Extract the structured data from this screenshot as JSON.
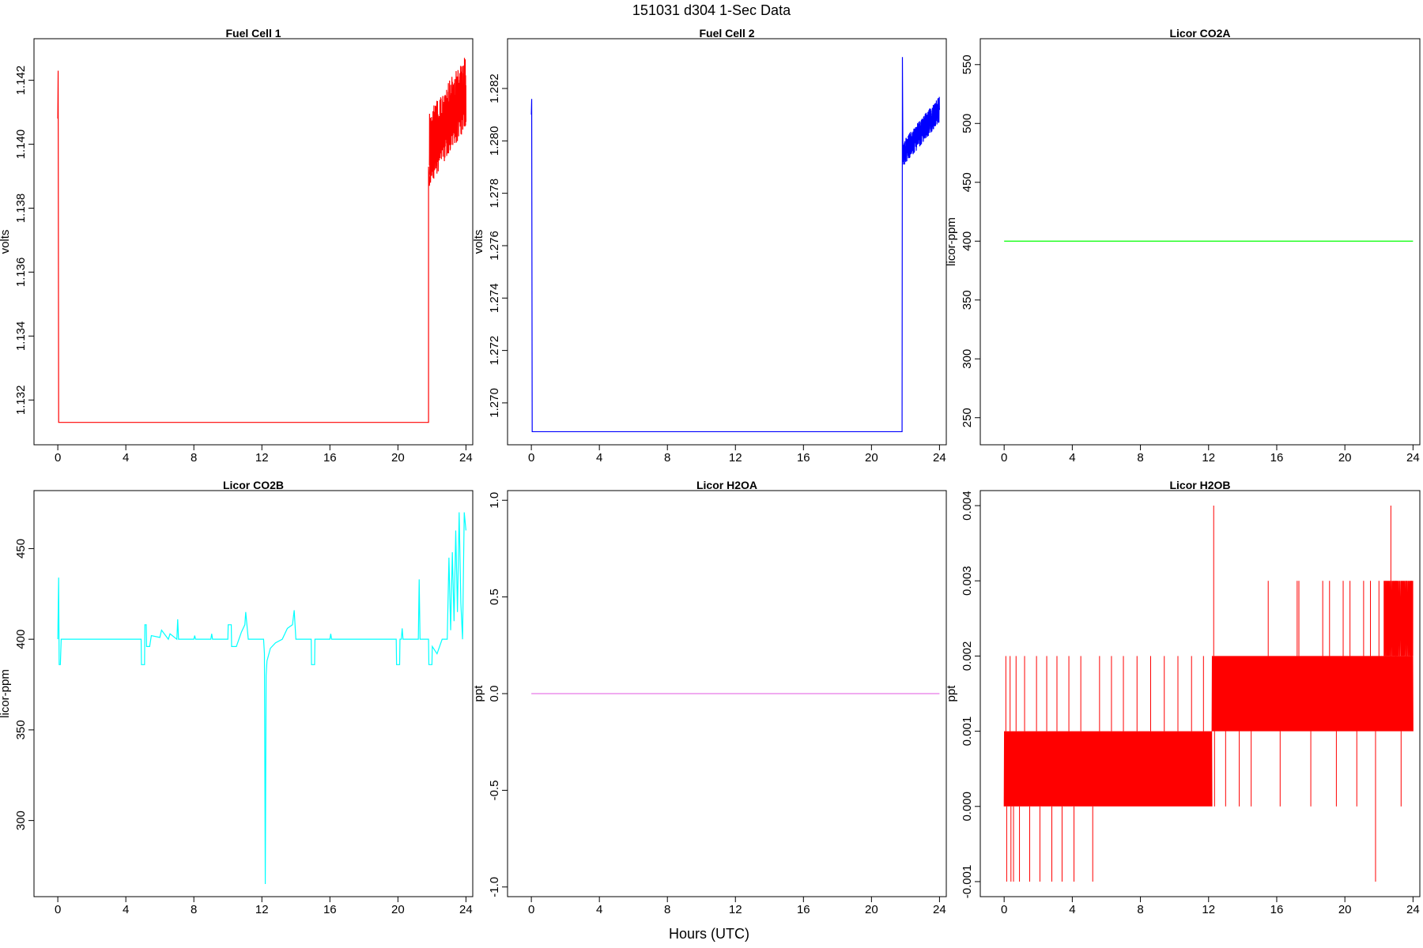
{
  "figure": {
    "title": "151031    d304    1-Sec Data",
    "xlabel": "Hours (UTC)"
  },
  "chart_data": [
    {
      "type": "line",
      "title": "Fuel Cell 1",
      "xlabel": "",
      "ylabel": "volts",
      "color": "#ff0000",
      "xlim": [
        -1.4,
        24.4
      ],
      "ylim": [
        1.1306,
        1.1433
      ],
      "xticks": [
        0,
        4,
        8,
        12,
        16,
        20,
        24
      ],
      "yticks": [
        1.132,
        1.134,
        1.136,
        1.138,
        1.14,
        1.142
      ],
      "ytick_labels": [
        "1.132",
        "1.134",
        "1.136",
        "1.138",
        "1.140",
        "1.142"
      ],
      "series": [
        {
          "x": [
            0,
            0.02,
            0.05,
            0.08,
            21.8,
            21.8,
            21.85,
            22.0,
            22.3,
            22.6,
            22.9,
            23.2,
            23.5,
            23.8,
            24.0
          ],
          "y": [
            1.1408,
            1.1423,
            1.1313,
            1.1313,
            1.1313,
            1.1393,
            1.1387,
            1.1398,
            1.14,
            1.1402,
            1.1405,
            1.1407,
            1.1409,
            1.141,
            1.1412
          ]
        }
      ],
      "noise_band": {
        "x_start": 21.85,
        "x_end": 24.0,
        "y_low": [
          1.1387,
          1.1405
        ],
        "y_high": [
          1.141,
          1.1428
        ]
      }
    },
    {
      "type": "line",
      "title": "Fuel Cell 2",
      "xlabel": "",
      "ylabel": "volts",
      "color": "#0000ff",
      "xlim": [
        -1.4,
        24.4
      ],
      "ylim": [
        1.2684,
        1.2839
      ],
      "xticks": [
        0,
        4,
        8,
        12,
        16,
        20,
        24
      ],
      "yticks": [
        1.27,
        1.272,
        1.274,
        1.276,
        1.278,
        1.28,
        1.282
      ],
      "ytick_labels": [
        "1.270",
        "1.272",
        "1.274",
        "1.276",
        "1.278",
        "1.280",
        "1.282"
      ],
      "series": [
        {
          "x": [
            0,
            0.02,
            0.05,
            0.08,
            21.8,
            21.82,
            21.85,
            22.0,
            22.3,
            22.6,
            22.9,
            23.2,
            23.5,
            23.8,
            24.0
          ],
          "y": [
            1.281,
            1.2816,
            1.2689,
            1.2689,
            1.2689,
            1.2832,
            1.2792,
            1.2797,
            1.2799,
            1.2802,
            1.2804,
            1.2807,
            1.2809,
            1.2811,
            1.2813
          ]
        }
      ],
      "noise_band": {
        "x_start": 21.85,
        "x_end": 24.0,
        "y_low": [
          1.279,
          1.2807
        ],
        "y_high": [
          1.28,
          1.2817
        ]
      }
    },
    {
      "type": "line",
      "title": "Licor CO2A",
      "xlabel": "",
      "ylabel": "licor-ppm",
      "color": "#00ff00",
      "xlim": [
        -1.4,
        24.4
      ],
      "ylim": [
        227,
        572
      ],
      "xticks": [
        0,
        4,
        8,
        12,
        16,
        20,
        24
      ],
      "yticks": [
        250,
        300,
        350,
        400,
        450,
        500,
        550
      ],
      "series": [
        {
          "x": [
            0,
            24
          ],
          "y": [
            400,
            400
          ]
        }
      ]
    },
    {
      "type": "line",
      "title": "Licor CO2B",
      "xlabel": "",
      "ylabel": "licor-ppm",
      "color": "#00ffff",
      "xlim": [
        -1.4,
        24.4
      ],
      "ylim": [
        258,
        482
      ],
      "xticks": [
        0,
        4,
        8,
        12,
        16,
        20,
        24
      ],
      "yticks": [
        300,
        350,
        400,
        450
      ],
      "series": [
        {
          "x": [
            0,
            0.05,
            0.08,
            0.15,
            0.2,
            4.9,
            4.92,
            5.1,
            5.12,
            5.2,
            5.22,
            5.4,
            5.5,
            6.0,
            6.1,
            6.5,
            6.6,
            7.0,
            7.05,
            7.1,
            8.0,
            8.05,
            8.1,
            9.0,
            9.05,
            9.1,
            10.0,
            10.02,
            10.2,
            10.22,
            10.5,
            10.8,
            11.0,
            11.05,
            11.2,
            12.0,
            12.1,
            12.15,
            12.2,
            12.25,
            12.3,
            12.5,
            12.8,
            13.2,
            13.5,
            13.8,
            13.9,
            14.0,
            14.5,
            14.9,
            14.92,
            15.1,
            15.12,
            16.0,
            16.05,
            16.1,
            17.0,
            19.9,
            19.92,
            20.1,
            20.12,
            20.2,
            20.25,
            20.3,
            21.0,
            21.2,
            21.25,
            21.3,
            21.8,
            21.82,
            22.0,
            22.02,
            22.3,
            22.6,
            22.9,
            23.0,
            23.1,
            23.2,
            23.3,
            23.4,
            23.5,
            23.6,
            23.7,
            23.8,
            23.9,
            24.0
          ],
          "y": [
            400,
            434,
            386,
            386,
            400,
            400,
            386,
            386,
            408,
            408,
            396,
            396,
            402,
            401,
            405,
            400,
            403,
            400,
            411,
            400,
            400,
            402,
            400,
            400,
            403,
            400,
            400,
            408,
            408,
            396,
            396,
            404,
            408,
            415,
            400,
            400,
            400,
            392,
            265,
            380,
            388,
            395,
            398,
            400,
            406,
            408,
            416,
            400,
            400,
            400,
            386,
            386,
            400,
            400,
            403,
            400,
            400,
            400,
            386,
            386,
            400,
            400,
            406,
            400,
            400,
            400,
            433,
            400,
            400,
            386,
            386,
            396,
            392,
            400,
            400,
            445,
            405,
            448,
            410,
            460,
            415,
            470,
            420,
            400,
            470,
            460
          ]
        }
      ]
    },
    {
      "type": "line",
      "title": "Licor H2OA",
      "xlabel": "",
      "ylabel": "ppt",
      "color": "#e879e8",
      "xlim": [
        -1.4,
        24.4
      ],
      "ylim": [
        -1.05,
        1.05
      ],
      "xticks": [
        0,
        4,
        8,
        12,
        16,
        20,
        24
      ],
      "yticks": [
        -1.0,
        -0.5,
        0.0,
        0.5,
        1.0
      ],
      "ytick_labels": [
        "-1.0",
        "-0.5",
        "0.0",
        "0.5",
        "1.0"
      ],
      "series": [
        {
          "x": [
            0,
            24
          ],
          "y": [
            0,
            0
          ]
        }
      ]
    },
    {
      "type": "line",
      "title": "Licor H2OB",
      "xlabel": "",
      "ylabel": "ppt",
      "color": "#ff0000",
      "xlim": [
        -1.4,
        24.4
      ],
      "ylim": [
        -0.0012,
        0.0042
      ],
      "xticks": [
        0,
        4,
        8,
        12,
        16,
        20,
        24
      ],
      "yticks": [
        -0.001,
        0.0,
        0.001,
        0.002,
        0.003,
        0.004
      ],
      "ytick_labels": [
        "-0.001",
        "0.000",
        "0.001",
        "0.002",
        "0.003",
        "0.004"
      ],
      "segments": [
        {
          "x_start": 0.0,
          "x_end": 12.2,
          "low": 0.0,
          "high": 0.001
        },
        {
          "x_start": 12.2,
          "x_end": 24.0,
          "low": 0.001,
          "high": 0.002
        }
      ],
      "spikes": [
        {
          "x": 0.1,
          "to": 0.002
        },
        {
          "x": 0.15,
          "to": -0.001
        },
        {
          "x": 0.35,
          "to": 0.002
        },
        {
          "x": 0.4,
          "to": -0.001
        },
        {
          "x": 0.55,
          "to": -0.001
        },
        {
          "x": 0.7,
          "to": 0.002
        },
        {
          "x": 0.9,
          "to": -0.001
        },
        {
          "x": 1.2,
          "to": 0.002
        },
        {
          "x": 1.5,
          "to": -0.001
        },
        {
          "x": 1.9,
          "to": 0.002
        },
        {
          "x": 2.1,
          "to": -0.001
        },
        {
          "x": 2.5,
          "to": 0.002
        },
        {
          "x": 2.8,
          "to": -0.001
        },
        {
          "x": 3.1,
          "to": 0.002
        },
        {
          "x": 3.4,
          "to": -0.001
        },
        {
          "x": 3.8,
          "to": 0.002
        },
        {
          "x": 4.1,
          "to": -0.001
        },
        {
          "x": 4.5,
          "to": 0.002
        },
        {
          "x": 5.2,
          "to": -0.001
        },
        {
          "x": 5.6,
          "to": 0.002
        },
        {
          "x": 6.3,
          "to": 0.002
        },
        {
          "x": 7.0,
          "to": 0.002
        },
        {
          "x": 7.8,
          "to": 0.002
        },
        {
          "x": 8.6,
          "to": 0.002
        },
        {
          "x": 9.4,
          "to": 0.002
        },
        {
          "x": 10.2,
          "to": 0.002
        },
        {
          "x": 11.0,
          "to": 0.002
        },
        {
          "x": 11.7,
          "to": 0.002
        },
        {
          "x": 12.3,
          "to": 0.004
        },
        {
          "x": 12.35,
          "to": 0.0
        },
        {
          "x": 13.0,
          "to": 0.0
        },
        {
          "x": 13.8,
          "to": 0.0
        },
        {
          "x": 14.5,
          "to": 0.0
        },
        {
          "x": 15.5,
          "to": 0.003
        },
        {
          "x": 16.2,
          "to": 0.0
        },
        {
          "x": 17.2,
          "to": 0.003
        },
        {
          "x": 17.3,
          "to": 0.003
        },
        {
          "x": 18.0,
          "to": 0.0
        },
        {
          "x": 18.7,
          "to": 0.003
        },
        {
          "x": 19.1,
          "to": 0.003
        },
        {
          "x": 19.5,
          "to": 0.0
        },
        {
          "x": 19.9,
          "to": 0.003
        },
        {
          "x": 20.3,
          "to": 0.003
        },
        {
          "x": 20.7,
          "to": 0.0
        },
        {
          "x": 21.1,
          "to": 0.003
        },
        {
          "x": 21.5,
          "to": 0.003
        },
        {
          "x": 21.8,
          "to": -0.001
        },
        {
          "x": 22.0,
          "to": 0.003
        },
        {
          "x": 22.4,
          "to": 0.003
        },
        {
          "x": 22.7,
          "to": 0.004
        },
        {
          "x": 23.0,
          "to": 0.003
        },
        {
          "x": 23.3,
          "to": 0.0
        },
        {
          "x": 23.6,
          "to": 0.003
        },
        {
          "x": 23.9,
          "to": 0.003
        }
      ],
      "late_upper_band": {
        "x_start": 22.3,
        "x_end": 24.0,
        "low": 0.002,
        "high": 0.003
      }
    }
  ]
}
